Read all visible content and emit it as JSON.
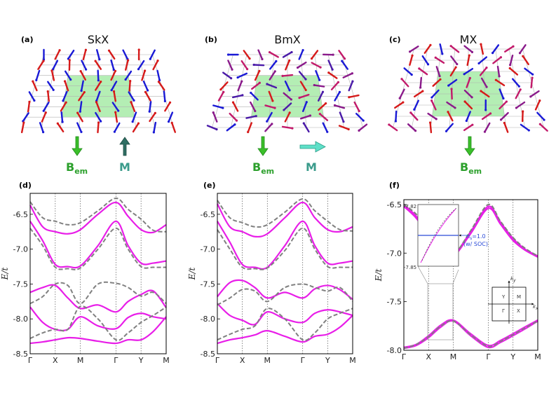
{
  "figure": {
    "panels_top": [
      {
        "label": "(a)",
        "title": "SkX",
        "bem": "B",
        "bem_sub": "em",
        "m": "M",
        "pattern": "skx"
      },
      {
        "label": "(b)",
        "title": "BmX",
        "bem": "B",
        "bem_sub": "em",
        "m": "M",
        "pattern": "bmx"
      },
      {
        "label": "(c)",
        "title": "MX",
        "bem": "B",
        "bem_sub": "em",
        "pattern": "mx"
      }
    ],
    "panels_bottom": [
      {
        "label": "(d)"
      },
      {
        "label": "(e)"
      },
      {
        "label": "(f)"
      }
    ],
    "ylabel": "E/t",
    "ylabel_main": "E",
    "ylabel_rest": "/t",
    "inset": {
      "y_top": "-7.82",
      "y_bottom": "-7.85",
      "annotation_line1": "n",
      "annotation_sub": "s",
      "annotation_rest": "=1.0",
      "annotation_line2": "(w/ SOC)"
    },
    "bz": {
      "ky": "k",
      "ky_sub": "y",
      "kx": "k",
      "kx_sub": "x",
      "Y": "Y",
      "M": "M",
      "G": "Γ",
      "X": "X"
    }
  },
  "chart_data": [
    {
      "type": "line",
      "panel": "(d)",
      "xlabel": "",
      "ylabel": "E/t",
      "ylim": [
        -8.5,
        -6.2
      ],
      "yticks": [
        -8.5,
        -8.0,
        -7.5,
        -7.0,
        -6.5
      ],
      "ytick_labels": [
        "-8.5",
        "-8.0",
        "-7.5",
        "-7.0",
        "-6.5"
      ],
      "k_points": [
        0,
        1,
        2,
        3.414,
        4.414,
        5.414
      ],
      "k_labels": [
        "Γ",
        "X",
        "M",
        "Γ",
        "Y",
        "M"
      ],
      "series": [
        {
          "name": "solid-1",
          "style": "solid",
          "color": "#e81ee8",
          "x": [
            0,
            0.5,
            1,
            1.5,
            2,
            2.7,
            3.414,
            3.9,
            4.414,
            4.9,
            5.414
          ],
          "y": [
            -6.37,
            -6.68,
            -6.75,
            -6.78,
            -6.72,
            -6.5,
            -6.33,
            -6.53,
            -6.72,
            -6.76,
            -6.65
          ]
        },
        {
          "name": "solid-2",
          "style": "solid",
          "color": "#e81ee8",
          "x": [
            0,
            0.5,
            1,
            1.5,
            2,
            2.7,
            3.414,
            3.9,
            4.414,
            4.9,
            5.414
          ],
          "y": [
            -6.6,
            -6.88,
            -7.22,
            -7.25,
            -7.24,
            -6.95,
            -6.6,
            -6.95,
            -7.2,
            -7.2,
            -7.17
          ]
        },
        {
          "name": "solid-3",
          "style": "solid",
          "color": "#e81ee8",
          "x": [
            0,
            0.5,
            1,
            1.5,
            2,
            2.7,
            3.414,
            3.9,
            4.414,
            4.9,
            5.414
          ],
          "y": [
            -7.62,
            -7.55,
            -7.52,
            -7.7,
            -7.85,
            -7.8,
            -7.9,
            -7.75,
            -7.65,
            -7.6,
            -7.84
          ]
        },
        {
          "name": "solid-4",
          "style": "solid",
          "color": "#e81ee8",
          "x": [
            0,
            0.5,
            1,
            1.5,
            2,
            2.7,
            3.414,
            3.9,
            4.414,
            4.9,
            5.414
          ],
          "y": [
            -7.83,
            -8.05,
            -8.15,
            -8.15,
            -7.97,
            -8.1,
            -8.14,
            -7.98,
            -7.92,
            -7.97,
            -8.0
          ]
        },
        {
          "name": "solid-5",
          "style": "solid",
          "color": "#e81ee8",
          "x": [
            0,
            0.5,
            1,
            1.5,
            2,
            2.7,
            3.414,
            3.9,
            4.414,
            4.9,
            5.414
          ],
          "y": [
            -8.35,
            -8.33,
            -8.3,
            -8.27,
            -8.28,
            -8.32,
            -8.35,
            -8.3,
            -8.3,
            -8.18,
            -7.97
          ]
        },
        {
          "name": "dashed-1",
          "style": "dashed",
          "color": "#808080",
          "x": [
            0,
            0.5,
            1,
            1.5,
            2,
            2.7,
            3.414,
            3.9,
            4.414,
            4.9,
            5.414
          ],
          "y": [
            -6.32,
            -6.55,
            -6.6,
            -6.65,
            -6.62,
            -6.45,
            -6.27,
            -6.43,
            -6.57,
            -6.73,
            -6.75
          ]
        },
        {
          "name": "dashed-2",
          "style": "dashed",
          "color": "#808080",
          "x": [
            0,
            0.5,
            1,
            1.5,
            2,
            2.7,
            3.414,
            3.9,
            4.414,
            4.9,
            5.414
          ],
          "y": [
            -6.7,
            -6.95,
            -7.26,
            -7.28,
            -7.27,
            -7.0,
            -6.7,
            -7.0,
            -7.25,
            -7.26,
            -7.26
          ]
        },
        {
          "name": "dashed-3",
          "style": "dashed",
          "color": "#808080",
          "x": [
            0,
            0.5,
            1,
            1.5,
            2,
            2.7,
            3.414,
            3.9,
            4.414,
            4.9,
            5.414
          ],
          "y": [
            -7.78,
            -7.68,
            -7.5,
            -7.52,
            -7.78,
            -7.5,
            -7.49,
            -7.55,
            -7.67,
            -7.62,
            -7.78
          ]
        },
        {
          "name": "dashed-4",
          "style": "dashed",
          "color": "#808080",
          "x": [
            0,
            0.5,
            1,
            1.5,
            2,
            2.7,
            3.414,
            3.9,
            4.414,
            4.9,
            5.414
          ],
          "y": [
            -8.28,
            -8.2,
            -8.15,
            -8.15,
            -7.82,
            -8.0,
            -8.3,
            -8.2,
            -8.05,
            -7.95,
            -7.83
          ]
        }
      ]
    },
    {
      "type": "line",
      "panel": "(e)",
      "xlabel": "",
      "ylabel": "E/t",
      "ylim": [
        -8.5,
        -6.2
      ],
      "yticks": [
        -8.5,
        -8.0,
        -7.5,
        -7.0,
        -6.5
      ],
      "ytick_labels": [
        "-8.5",
        "-8.0",
        "-7.5",
        "-7.0",
        "-6.5"
      ],
      "k_points": [
        0,
        1,
        2,
        3.414,
        4.414,
        5.414
      ],
      "k_labels": [
        "Γ",
        "X",
        "M",
        "Γ",
        "Y",
        "M"
      ],
      "series": [
        {
          "name": "solid-1",
          "style": "solid",
          "color": "#e81ee8",
          "x": [
            0,
            0.5,
            1,
            1.5,
            2,
            2.7,
            3.414,
            3.9,
            4.414,
            4.9,
            5.414
          ],
          "y": [
            -6.35,
            -6.68,
            -6.75,
            -6.82,
            -6.78,
            -6.55,
            -6.33,
            -6.55,
            -6.72,
            -6.75,
            -6.68
          ]
        },
        {
          "name": "solid-2",
          "style": "solid",
          "color": "#e81ee8",
          "x": [
            0,
            0.5,
            1,
            1.5,
            2,
            2.7,
            3.414,
            3.9,
            4.414,
            4.9,
            5.414
          ],
          "y": [
            -6.6,
            -6.9,
            -7.22,
            -7.26,
            -7.26,
            -6.95,
            -6.6,
            -6.95,
            -7.2,
            -7.2,
            -7.17
          ]
        },
        {
          "name": "solid-3",
          "style": "solid",
          "color": "#e81ee8",
          "x": [
            0,
            0.5,
            1,
            1.5,
            2,
            2.7,
            3.414,
            3.9,
            4.414,
            4.9,
            5.414
          ],
          "y": [
            -7.68,
            -7.48,
            -7.45,
            -7.55,
            -7.7,
            -7.62,
            -7.7,
            -7.57,
            -7.52,
            -7.58,
            -7.72
          ]
        },
        {
          "name": "solid-4",
          "style": "solid",
          "color": "#e81ee8",
          "x": [
            0,
            0.5,
            1,
            1.5,
            2,
            2.7,
            3.414,
            3.9,
            4.414,
            4.9,
            5.414
          ],
          "y": [
            -7.78,
            -7.95,
            -8.02,
            -8.08,
            -7.9,
            -8.0,
            -8.05,
            -7.92,
            -7.87,
            -7.9,
            -7.95
          ]
        },
        {
          "name": "solid-5",
          "style": "solid",
          "color": "#e81ee8",
          "x": [
            0,
            0.5,
            1,
            1.5,
            2,
            2.7,
            3.414,
            3.9,
            4.414,
            4.9,
            5.414
          ],
          "y": [
            -8.35,
            -8.3,
            -8.27,
            -8.23,
            -8.17,
            -8.25,
            -8.33,
            -8.25,
            -8.22,
            -8.12,
            -7.95
          ]
        },
        {
          "name": "dashed-1",
          "style": "dashed",
          "color": "#808080",
          "x": [
            0,
            0.5,
            1,
            1.5,
            2,
            2.7,
            3.414,
            3.9,
            4.414,
            4.9,
            5.414
          ],
          "y": [
            -6.3,
            -6.55,
            -6.62,
            -6.68,
            -6.65,
            -6.47,
            -6.28,
            -6.45,
            -6.6,
            -6.72,
            -6.74
          ]
        },
        {
          "name": "dashed-2",
          "style": "dashed",
          "color": "#808080",
          "x": [
            0,
            0.5,
            1,
            1.5,
            2,
            2.7,
            3.414,
            3.9,
            4.414,
            4.9,
            5.414
          ],
          "y": [
            -6.72,
            -7.0,
            -7.26,
            -7.28,
            -7.27,
            -7.02,
            -6.7,
            -7.0,
            -7.25,
            -7.26,
            -7.26
          ]
        },
        {
          "name": "dashed-3",
          "style": "dashed",
          "color": "#808080",
          "x": [
            0,
            0.5,
            1,
            1.5,
            2,
            2.7,
            3.414,
            3.9,
            4.414,
            4.9,
            5.414
          ],
          "y": [
            -7.8,
            -7.7,
            -7.58,
            -7.6,
            -7.75,
            -7.55,
            -7.5,
            -7.55,
            -7.6,
            -7.55,
            -7.75
          ]
        },
        {
          "name": "dashed-4",
          "style": "dashed",
          "color": "#808080",
          "x": [
            0,
            0.5,
            1,
            1.5,
            2,
            2.7,
            3.414,
            3.9,
            4.414,
            4.9,
            5.414
          ],
          "y": [
            -8.3,
            -8.22,
            -8.15,
            -8.1,
            -7.85,
            -8.0,
            -8.3,
            -8.2,
            -8.0,
            -7.92,
            -7.85
          ]
        }
      ]
    },
    {
      "type": "line",
      "panel": "(f)",
      "xlabel": "",
      "ylabel": "E/t",
      "ylim": [
        -8.0,
        -6.45
      ],
      "yticks": [
        -8.0,
        -7.5,
        -7.0,
        -6.5
      ],
      "ytick_labels": [
        "-8.0",
        "-7.5",
        "-7.0",
        "-6.5"
      ],
      "k_points": [
        0,
        1,
        2,
        3.414,
        4.414,
        5.414
      ],
      "k_labels": [
        "Γ",
        "X",
        "M",
        "Γ",
        "Y",
        "M"
      ],
      "series": [
        {
          "name": "solid-1",
          "style": "solid",
          "color": "#e81ee8",
          "x": [
            0,
            0.5,
            1,
            1.5,
            2,
            2.7,
            3.414,
            3.9,
            4.414,
            4.9,
            5.414
          ],
          "y": [
            -6.5,
            -6.62,
            -6.8,
            -6.95,
            -7.02,
            -6.78,
            -6.52,
            -6.68,
            -6.85,
            -6.96,
            -7.03
          ]
        },
        {
          "name": "solid-2",
          "style": "solid",
          "color": "#e81ee8",
          "x": [
            0,
            0.5,
            1,
            1.5,
            2,
            2.7,
            3.414,
            3.9,
            4.414,
            4.9,
            5.414
          ],
          "y": [
            -6.52,
            -6.64,
            -6.82,
            -6.96,
            -7.03,
            -6.8,
            -6.54,
            -6.7,
            -6.87,
            -6.97,
            -7.04
          ]
        },
        {
          "name": "solid-3",
          "style": "solid",
          "color": "#e81ee8",
          "x": [
            0,
            0.5,
            1,
            1.5,
            2,
            2.7,
            3.414,
            3.9,
            4.414,
            4.9,
            5.414
          ],
          "y": [
            -7.97,
            -7.94,
            -7.85,
            -7.74,
            -7.69,
            -7.83,
            -7.95,
            -7.9,
            -7.83,
            -7.76,
            -7.69
          ]
        },
        {
          "name": "solid-4",
          "style": "solid",
          "color": "#e81ee8",
          "x": [
            0,
            0.5,
            1,
            1.5,
            2,
            2.7,
            3.414,
            3.9,
            4.414,
            4.9,
            5.414
          ],
          "y": [
            -7.98,
            -7.95,
            -7.87,
            -7.76,
            -7.7,
            -7.85,
            -7.97,
            -7.92,
            -7.85,
            -7.78,
            -7.7
          ]
        },
        {
          "name": "dashed-1",
          "style": "dashed",
          "color": "#808080",
          "x": [
            0,
            0.5,
            1,
            1.5,
            2,
            2.7,
            3.414,
            3.9,
            4.414,
            4.9,
            5.414
          ],
          "y": [
            -6.5,
            -6.6,
            -6.78,
            -6.94,
            -7.02,
            -6.77,
            -6.5,
            -6.67,
            -6.84,
            -6.95,
            -7.03
          ]
        },
        {
          "name": "dashed-2",
          "style": "dashed",
          "color": "#808080",
          "x": [
            0,
            0.5,
            1,
            1.5,
            2,
            2.7,
            3.414,
            3.9,
            4.414,
            4.9,
            5.414
          ],
          "y": [
            -7.98,
            -7.94,
            -7.86,
            -7.75,
            -7.7,
            -7.84,
            -7.96,
            -7.91,
            -7.84,
            -7.77,
            -7.7
          ]
        }
      ]
    }
  ]
}
